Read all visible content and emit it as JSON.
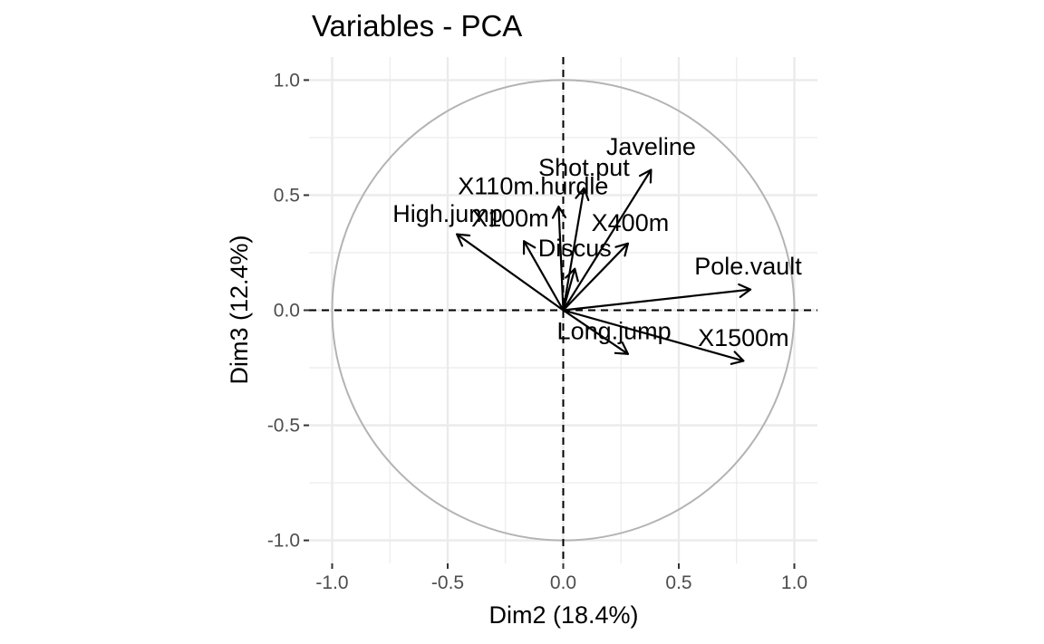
{
  "chart_data": {
    "type": "scatter",
    "subtype": "pca-variable-correlation-circle",
    "title": "Variables - PCA",
    "xlabel": "Dim2 (18.4%)",
    "ylabel": "Dim3 (12.4%)",
    "xlim": [
      -1.1,
      1.1
    ],
    "ylim": [
      -1.1,
      1.1
    ],
    "xticks": [
      -1.0,
      -0.5,
      0.0,
      0.5,
      1.0
    ],
    "yticks": [
      -1.0,
      -0.5,
      0.0,
      0.5,
      1.0
    ],
    "xtick_labels": [
      "-1.0",
      "-0.5",
      "0.0",
      "0.5",
      "1.0"
    ],
    "ytick_labels": [
      "-1.0",
      "-0.5",
      "0.0",
      "0.5",
      "1.0"
    ],
    "grid": true,
    "unit_circle": true,
    "reference_lines": [
      "x=0",
      "y=0"
    ],
    "arrow_color": "#000000",
    "circle_color": "#b3b3b3",
    "grid_color": "#ebebeb",
    "variables": [
      {
        "name": "High.jump",
        "x": -0.46,
        "y": 0.33,
        "label_x": -0.5,
        "label_y": 0.42
      },
      {
        "name": "X110m.hurdle",
        "x": -0.02,
        "y": 0.45,
        "label_x": -0.13,
        "label_y": 0.54
      },
      {
        "name": "X100m",
        "x": -0.17,
        "y": 0.3,
        "label_x": -0.23,
        "label_y": 0.4
      },
      {
        "name": "Shot.put",
        "x": 0.09,
        "y": 0.53,
        "label_x": 0.09,
        "label_y": 0.62
      },
      {
        "name": "Javeline",
        "x": 0.38,
        "y": 0.61,
        "label_x": 0.38,
        "label_y": 0.71
      },
      {
        "name": "X400m",
        "x": 0.28,
        "y": 0.29,
        "label_x": 0.29,
        "label_y": 0.38
      },
      {
        "name": "Discus",
        "x": 0.05,
        "y": 0.18,
        "label_x": 0.05,
        "label_y": 0.27
      },
      {
        "name": "Pole.vault",
        "x": 0.81,
        "y": 0.09,
        "label_x": 0.8,
        "label_y": 0.19
      },
      {
        "name": "Long.jump",
        "x": 0.28,
        "y": -0.19,
        "label_x": 0.22,
        "label_y": -0.09
      },
      {
        "name": "X1500m",
        "x": 0.78,
        "y": -0.22,
        "label_x": 0.78,
        "label_y": -0.12
      }
    ]
  }
}
